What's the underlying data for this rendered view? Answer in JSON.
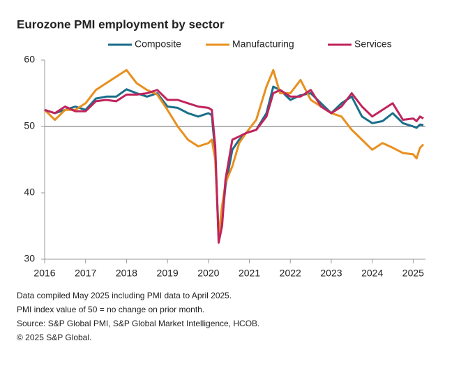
{
  "chart_data": {
    "type": "line",
    "title": "Eurozone PMI employment by sector",
    "x": [
      2016.0,
      2016.25,
      2016.5,
      2016.75,
      2017.0,
      2017.25,
      2017.5,
      2017.75,
      2018.0,
      2018.25,
      2018.5,
      2018.75,
      2019.0,
      2019.25,
      2019.5,
      2019.75,
      2020.0,
      2020.083,
      2020.167,
      2020.25,
      2020.333,
      2020.417,
      2020.583,
      2020.75,
      2020.917,
      2021.167,
      2021.417,
      2021.583,
      2021.75,
      2022.0,
      2022.25,
      2022.5,
      2022.75,
      2023.0,
      2023.25,
      2023.5,
      2023.75,
      2024.0,
      2024.25,
      2024.5,
      2024.75,
      2025.0,
      2025.083,
      2025.167,
      2025.25
    ],
    "series": [
      {
        "name": "Composite",
        "color": "#1a6e8a",
        "values": [
          52.5,
          52,
          52.5,
          53,
          52.5,
          54.2,
          54.5,
          54.5,
          55.6,
          55,
          54.5,
          55,
          53,
          52.8,
          52,
          51.5,
          52,
          51.7,
          46,
          33.5,
          36,
          41,
          46.5,
          48,
          49,
          49.5,
          52,
          56,
          55.5,
          54,
          54.7,
          55,
          53.5,
          52,
          53.5,
          54.5,
          51.5,
          50.5,
          50.8,
          52,
          50.5,
          50,
          49.8,
          50.3,
          50.2
        ]
      },
      {
        "name": "Manufacturing",
        "color": "#e8901f",
        "values": [
          52.5,
          51,
          52.5,
          52.5,
          53.5,
          55.5,
          56.5,
          57.5,
          58.5,
          56.5,
          55.5,
          54.8,
          52.5,
          50,
          48,
          47,
          47.5,
          48,
          45,
          33.5,
          38,
          41.5,
          44,
          47.5,
          49,
          51,
          56,
          58.5,
          55,
          55,
          57,
          54,
          53,
          52,
          51.5,
          49.5,
          48,
          46.5,
          47.5,
          46.8,
          46,
          45.8,
          45.2,
          46.8,
          47.3
        ]
      },
      {
        "name": "Services",
        "color": "#c0245c",
        "values": [
          52.5,
          52,
          53,
          52.3,
          52.3,
          53.8,
          54,
          53.8,
          54.8,
          54.8,
          55,
          55.5,
          54,
          54,
          53.5,
          53,
          52.8,
          52.5,
          47,
          32.5,
          35,
          42,
          48,
          48.5,
          49,
          49.5,
          51.5,
          55,
          55.5,
          54.5,
          54.5,
          55.5,
          53,
          52,
          53,
          55,
          53,
          51.5,
          52.5,
          53.5,
          51,
          51.2,
          50.8,
          51.5,
          51.2
        ]
      }
    ],
    "xlim": [
      2016,
      2025.3
    ],
    "xticks": [
      2016,
      2017,
      2018,
      2019,
      2020,
      2021,
      2022,
      2023,
      2024,
      2025
    ],
    "ylim": [
      30,
      60
    ],
    "yticks": [
      30,
      40,
      50,
      60
    ],
    "hline": 50,
    "legend": "top",
    "notes": [
      "Data compiled May 2025 including PMI data to April 2025.",
      "PMI index value of 50 = no change on prior month.",
      "Source: S&P Global PMI, S&P Global Market Intelligence, HCOB.",
      "© 2025 S&P Global."
    ]
  }
}
